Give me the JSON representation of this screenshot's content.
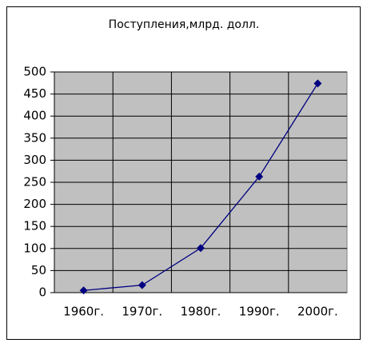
{
  "chart_data": {
    "type": "line",
    "title": "Поступления,млрд. долл.",
    "categories": [
      "1960г.",
      "1970г.",
      "1980г.",
      "1990г.",
      "2000г."
    ],
    "series": [
      {
        "name": "Поступления",
        "color": "#000080",
        "values": [
          5,
          17,
          101,
          263,
          474
        ]
      }
    ],
    "ylim": [
      0,
      500
    ],
    "yticks": [
      0,
      50,
      100,
      150,
      200,
      250,
      300,
      350,
      400,
      450,
      500
    ],
    "grid": true
  }
}
